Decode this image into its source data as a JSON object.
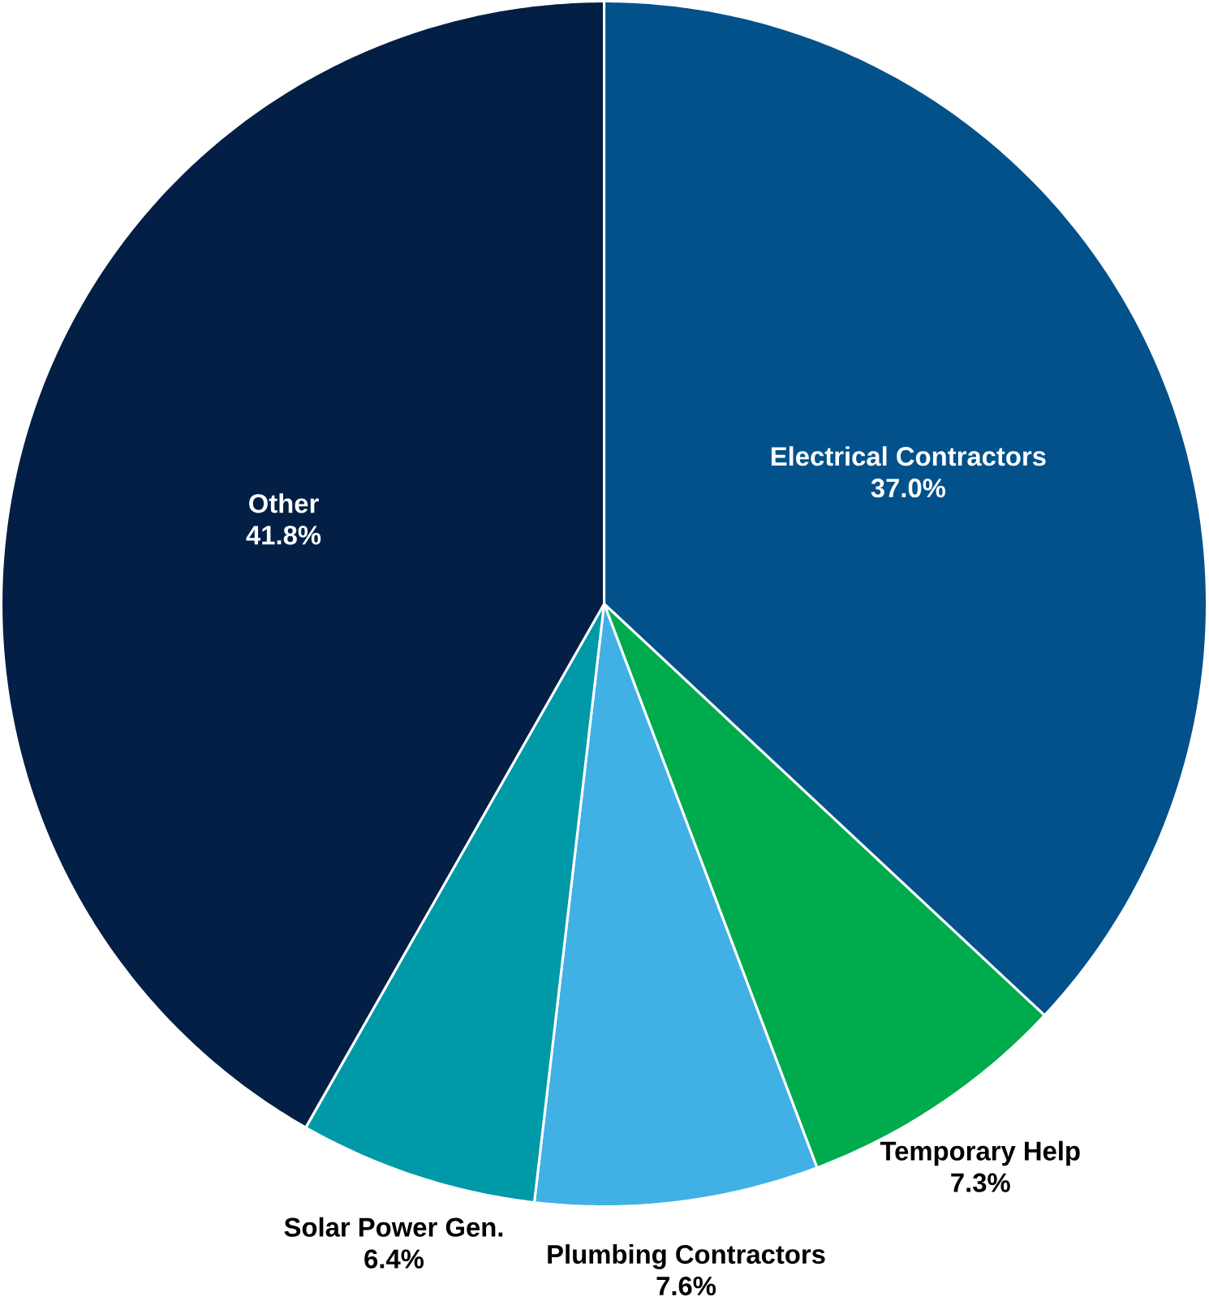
{
  "chart_data": {
    "type": "pie",
    "categories": [
      "Electrical Contractors",
      "Temporary Help",
      "Plumbing Contractors",
      "Solar Power Gen.",
      "Other"
    ],
    "values": [
      37.0,
      7.3,
      7.6,
      6.4,
      41.8
    ],
    "value_labels": [
      "37.0%",
      "7.3%",
      "7.6%",
      "6.4%",
      "41.8%"
    ],
    "colors": [
      "#03518a",
      "#00ab4e",
      "#41b0e4",
      "#0099a8",
      "#031f45"
    ]
  }
}
